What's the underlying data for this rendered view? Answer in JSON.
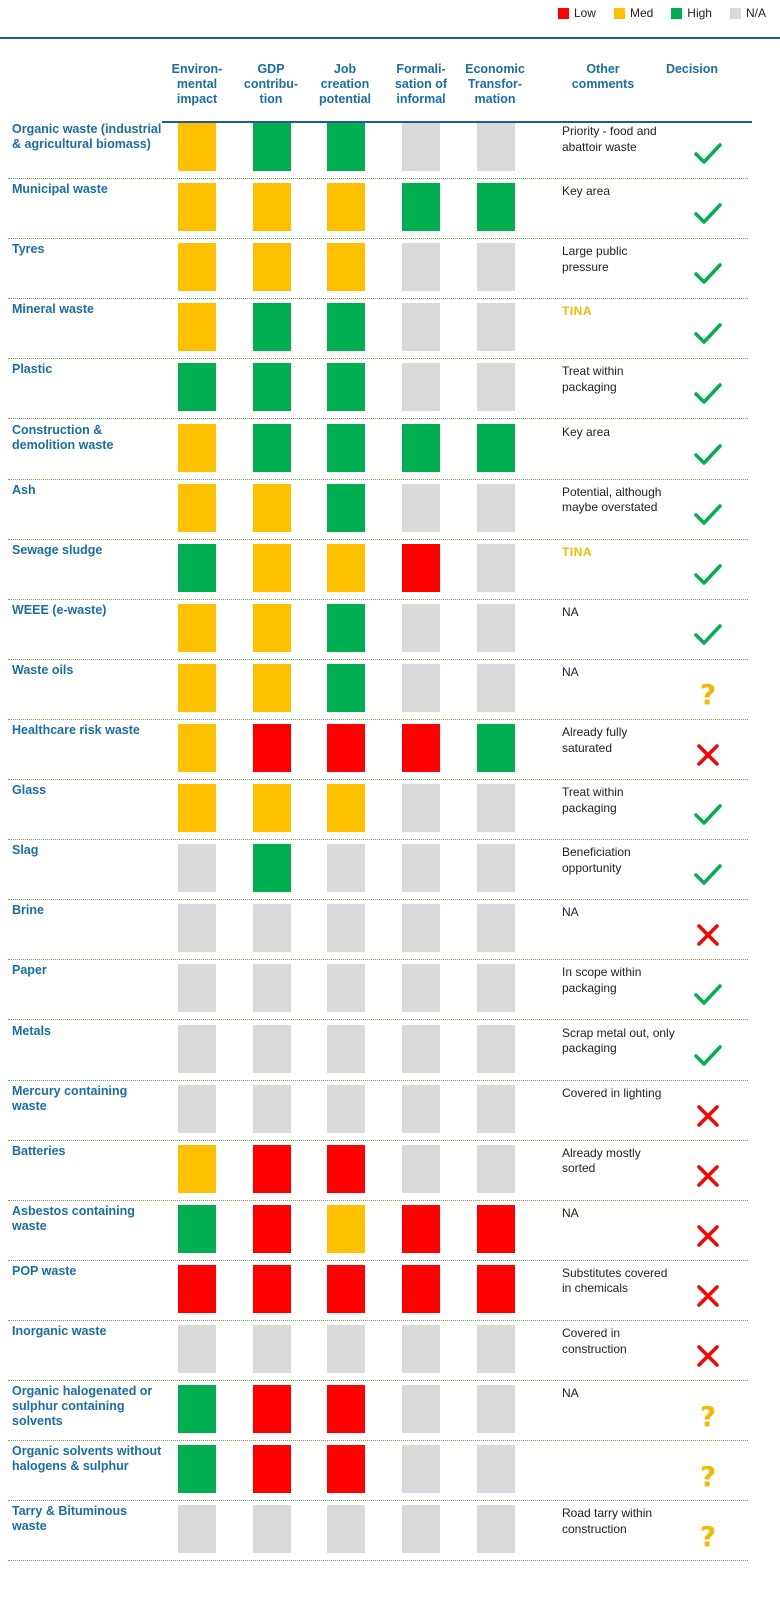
{
  "legend": [
    {
      "label": "Low",
      "color": "#ff0000"
    },
    {
      "label": "Med",
      "color": "#ffc000"
    },
    {
      "label": "High",
      "color": "#00b050"
    },
    {
      "label": "N/A",
      "color": "#d9d9d9"
    }
  ],
  "colors": {
    "L": "#ff0000",
    "M": "#ffc000",
    "H": "#00b050",
    "N": "#d9d9d9",
    "check": "#00b050",
    "cross": "#ff0000",
    "question": "#f5b800"
  },
  "headers": {
    "env": "Environ-\nmental\nimpact",
    "gdp": "GDP\ncontribu-\ntion",
    "job": "Job\ncreation\npotential",
    "formal": "Formali-\nsation of\ninformal",
    "econ": "Economic\nTransfor-\nmation",
    "comments": "Other\ncomments",
    "decision": "Decision"
  },
  "rows": [
    {
      "label": "Organic waste (industrial & agricultural biomass)",
      "ratings": [
        "M",
        "H",
        "H",
        "N",
        "N"
      ],
      "comment": "Priority - food and abattoir waste",
      "decision": "check"
    },
    {
      "label": "Municipal waste",
      "ratings": [
        "M",
        "M",
        "M",
        "H",
        "H"
      ],
      "comment": "Key area",
      "decision": "check"
    },
    {
      "label": "Tyres",
      "ratings": [
        "M",
        "M",
        "M",
        "N",
        "N"
      ],
      "comment": "Large public pressure",
      "decision": "check"
    },
    {
      "label": "Mineral waste",
      "ratings": [
        "M",
        "H",
        "H",
        "N",
        "N"
      ],
      "comment": "TINA",
      "decision": "check"
    },
    {
      "label": "Plastic",
      "ratings": [
        "H",
        "H",
        "H",
        "N",
        "N"
      ],
      "comment": "Treat within packaging",
      "decision": "check"
    },
    {
      "label": "Construction & demolition waste",
      "ratings": [
        "M",
        "H",
        "H",
        "H",
        "H"
      ],
      "comment": "Key area",
      "decision": "check"
    },
    {
      "label": "Ash",
      "ratings": [
        "M",
        "M",
        "H",
        "N",
        "N"
      ],
      "comment": "Potential, although maybe overstated",
      "decision": "check"
    },
    {
      "label": "Sewage sludge",
      "ratings": [
        "H",
        "M",
        "M",
        "L",
        "N"
      ],
      "comment": "TINA",
      "decision": "check"
    },
    {
      "label": "WEEE (e-waste)",
      "ratings": [
        "M",
        "M",
        "H",
        "N",
        "N"
      ],
      "comment": "NA",
      "decision": "check"
    },
    {
      "label": "Waste oils",
      "ratings": [
        "M",
        "M",
        "H",
        "N",
        "N"
      ],
      "comment": "NA",
      "decision": "question"
    },
    {
      "label": "Healthcare risk waste",
      "ratings": [
        "M",
        "L",
        "L",
        "L",
        "H"
      ],
      "comment": "Already fully saturated",
      "decision": "cross"
    },
    {
      "label": "Glass",
      "ratings": [
        "M",
        "M",
        "M",
        "N",
        "N"
      ],
      "comment": "Treat within packaging",
      "decision": "check"
    },
    {
      "label": "Slag",
      "ratings": [
        "N",
        "H",
        "N",
        "N",
        "N"
      ],
      "comment": "Beneficiation opportunity",
      "decision": "check"
    },
    {
      "label": "Brine",
      "ratings": [
        "N",
        "N",
        "N",
        "N",
        "N"
      ],
      "comment": "NA",
      "decision": "cross"
    },
    {
      "label": "Paper",
      "ratings": [
        "N",
        "N",
        "N",
        "N",
        "N"
      ],
      "comment": "In scope within packaging",
      "decision": "check"
    },
    {
      "label": "Metals",
      "ratings": [
        "N",
        "N",
        "N",
        "N",
        "N"
      ],
      "comment": "Scrap metal out, only packaging",
      "decision": "check"
    },
    {
      "label": "Mercury containing waste",
      "ratings": [
        "N",
        "N",
        "N",
        "N",
        "N"
      ],
      "comment": "Covered in lighting",
      "decision": "cross"
    },
    {
      "label": "Batteries",
      "ratings": [
        "M",
        "L",
        "L",
        "N",
        "N"
      ],
      "comment": "Already mostly sorted",
      "decision": "cross"
    },
    {
      "label": "Asbestos containing waste",
      "ratings": [
        "H",
        "L",
        "M",
        "L",
        "L"
      ],
      "comment": "NA",
      "decision": "cross"
    },
    {
      "label": "POP waste",
      "ratings": [
        "L",
        "L",
        "L",
        "L",
        "L"
      ],
      "comment": "Substitutes covered in chemicals",
      "decision": "cross"
    },
    {
      "label": "Inorganic waste",
      "ratings": [
        "N",
        "N",
        "N",
        "N",
        "N"
      ],
      "comment": "Covered in construction",
      "decision": "cross"
    },
    {
      "label": "Organic halogenated or sulphur containing solvents",
      "ratings": [
        "H",
        "L",
        "L",
        "N",
        "N"
      ],
      "comment": "NA",
      "decision": "question"
    },
    {
      "label": "Organic solvents without halogens & sulphur",
      "ratings": [
        "H",
        "L",
        "L",
        "N",
        "N"
      ],
      "comment": "",
      "decision": "question"
    },
    {
      "label": "Tarry & Bituminous waste",
      "ratings": [
        "N",
        "N",
        "N",
        "N",
        "N"
      ],
      "comment": "Road tarry within construction",
      "decision": "question"
    }
  ]
}
